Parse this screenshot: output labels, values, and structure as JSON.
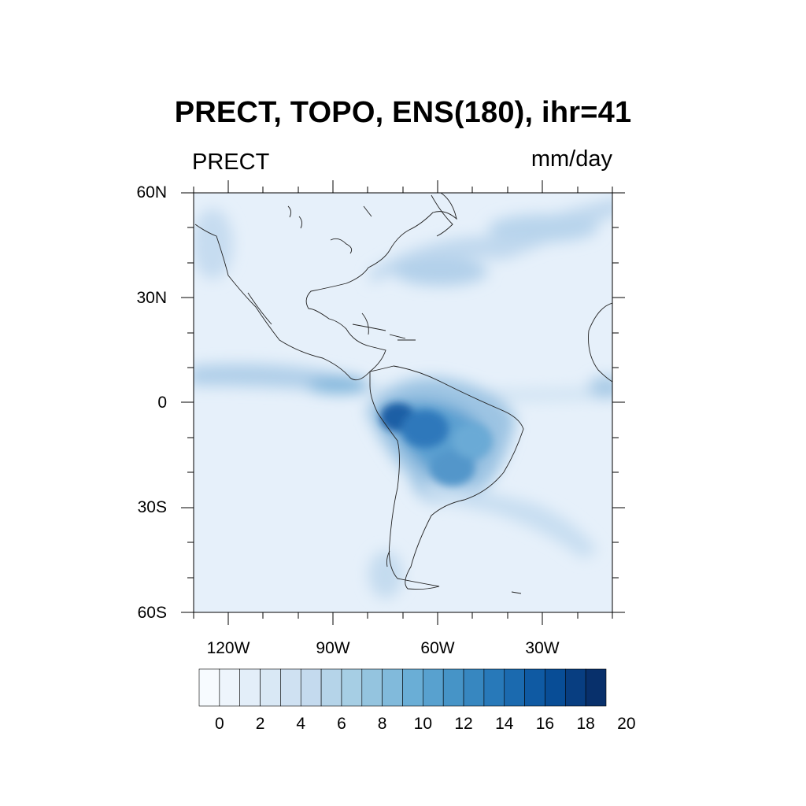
{
  "title": "PRECT, TOPO, ENS(180), ihr=41",
  "left_string": "PRECT",
  "right_string": "mm/day",
  "map": {
    "projection": "cylindrical-equidistant",
    "lon_range": [
      -130,
      10
    ],
    "lat_range": [
      -60,
      60
    ],
    "lat_tick_labels": [
      "60N",
      "30N",
      "0",
      "30S",
      "60S"
    ],
    "lat_ticks": [
      60,
      30,
      0,
      -30,
      -60
    ],
    "lon_tick_labels": [
      "120W",
      "90W",
      "60W",
      "30W"
    ],
    "lon_ticks": [
      -120,
      -90,
      -60,
      -30
    ],
    "field": "PRECT",
    "units": "mm/day",
    "features": [
      "coastlines",
      "ITCZ precipitation band near 8N across eastern Pacific",
      "heavy precipitation maximum over western Amazon (~5S, 72W)",
      "SACZ band extending southeast from Brazil",
      "North Atlantic storm track band"
    ]
  },
  "colorbar": {
    "levels": [
      "0",
      "2",
      "4",
      "6",
      "8",
      "10",
      "12",
      "14",
      "16",
      "18",
      "20"
    ],
    "colors": [
      "#f7fbff",
      "#eef5fc",
      "#e3eef9",
      "#d9e8f5",
      "#cfe1f2",
      "#c4daee",
      "#b5d4e9",
      "#a6cee4",
      "#94c4df",
      "#81badb",
      "#6aaed6",
      "#58a1cf",
      "#4694c7",
      "#3787c0",
      "#2879b9",
      "#1b6aaf",
      "#0f5aa3",
      "#084d96",
      "#083e81",
      "#08306b"
    ]
  }
}
